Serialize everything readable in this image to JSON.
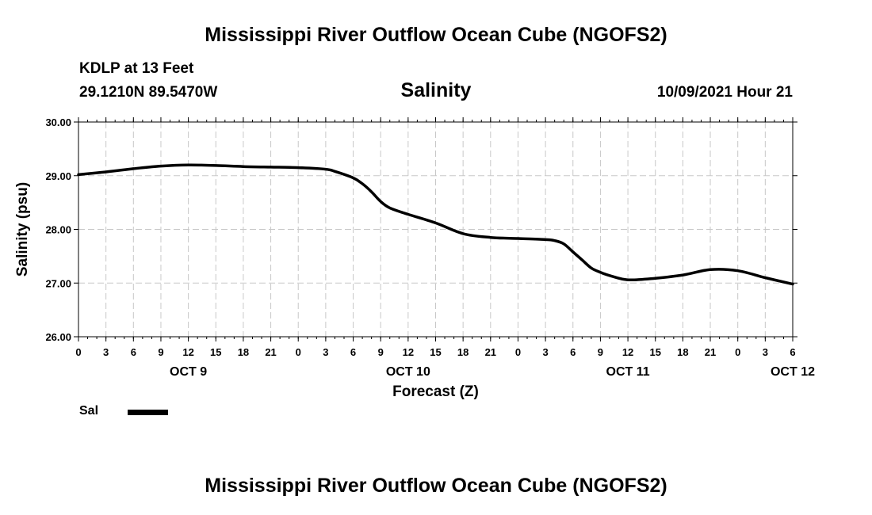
{
  "header": {
    "title": "Mississippi River Outflow Ocean Cube (NGOFS2)",
    "station": "KDLP at 13 Feet",
    "coords": "29.1210N  89.5470W",
    "subtitle": "Salinity",
    "datetime": "10/09/2021 Hour 21",
    "footer_title": "Mississippi River Outflow Ocean Cube (NGOFS2)"
  },
  "legend": {
    "label": "Sal",
    "color": "#000000"
  },
  "chart_data": {
    "type": "line",
    "title": "Salinity",
    "xlabel": "Forecast (Z)",
    "ylabel": "Salinity (psu)",
    "xlim": [
      0,
      78
    ],
    "ylim": [
      26.0,
      30.0
    ],
    "grid": true,
    "legend_position": "bottom-left",
    "y_ticks": [
      "26.00",
      "27.00",
      "28.00",
      "29.00",
      "30.00"
    ],
    "x_tick_labels": [
      "0",
      "3",
      "6",
      "9",
      "12",
      "15",
      "18",
      "21",
      "0",
      "3",
      "6",
      "9",
      "12",
      "15",
      "18",
      "21",
      "0",
      "3",
      "6",
      "9",
      "12",
      "15",
      "18",
      "21",
      "0",
      "3",
      "6"
    ],
    "day_labels": [
      {
        "label": "OCT 9",
        "x": 12
      },
      {
        "label": "OCT 10",
        "x": 36
      },
      {
        "label": "OCT 11",
        "x": 60
      },
      {
        "label": "OCT 12",
        "x": 78
      }
    ],
    "series": [
      {
        "name": "Sal",
        "color": "#000000",
        "x": [
          0,
          3,
          6,
          9,
          12,
          15,
          18,
          21,
          24,
          27,
          28,
          30,
          31,
          32,
          33,
          34,
          36,
          39,
          42,
          45,
          48,
          51,
          52,
          53,
          54,
          55,
          56,
          57,
          58,
          60,
          63,
          66,
          69,
          72,
          75,
          78
        ],
        "y": [
          29.02,
          29.07,
          29.13,
          29.18,
          29.2,
          29.19,
          29.17,
          29.16,
          29.15,
          29.12,
          29.08,
          28.96,
          28.85,
          28.7,
          28.52,
          28.4,
          28.28,
          28.12,
          27.92,
          27.85,
          27.83,
          27.81,
          27.79,
          27.73,
          27.58,
          27.43,
          27.28,
          27.2,
          27.14,
          27.06,
          27.09,
          27.15,
          27.25,
          27.23,
          27.1,
          26.98
        ]
      }
    ]
  }
}
